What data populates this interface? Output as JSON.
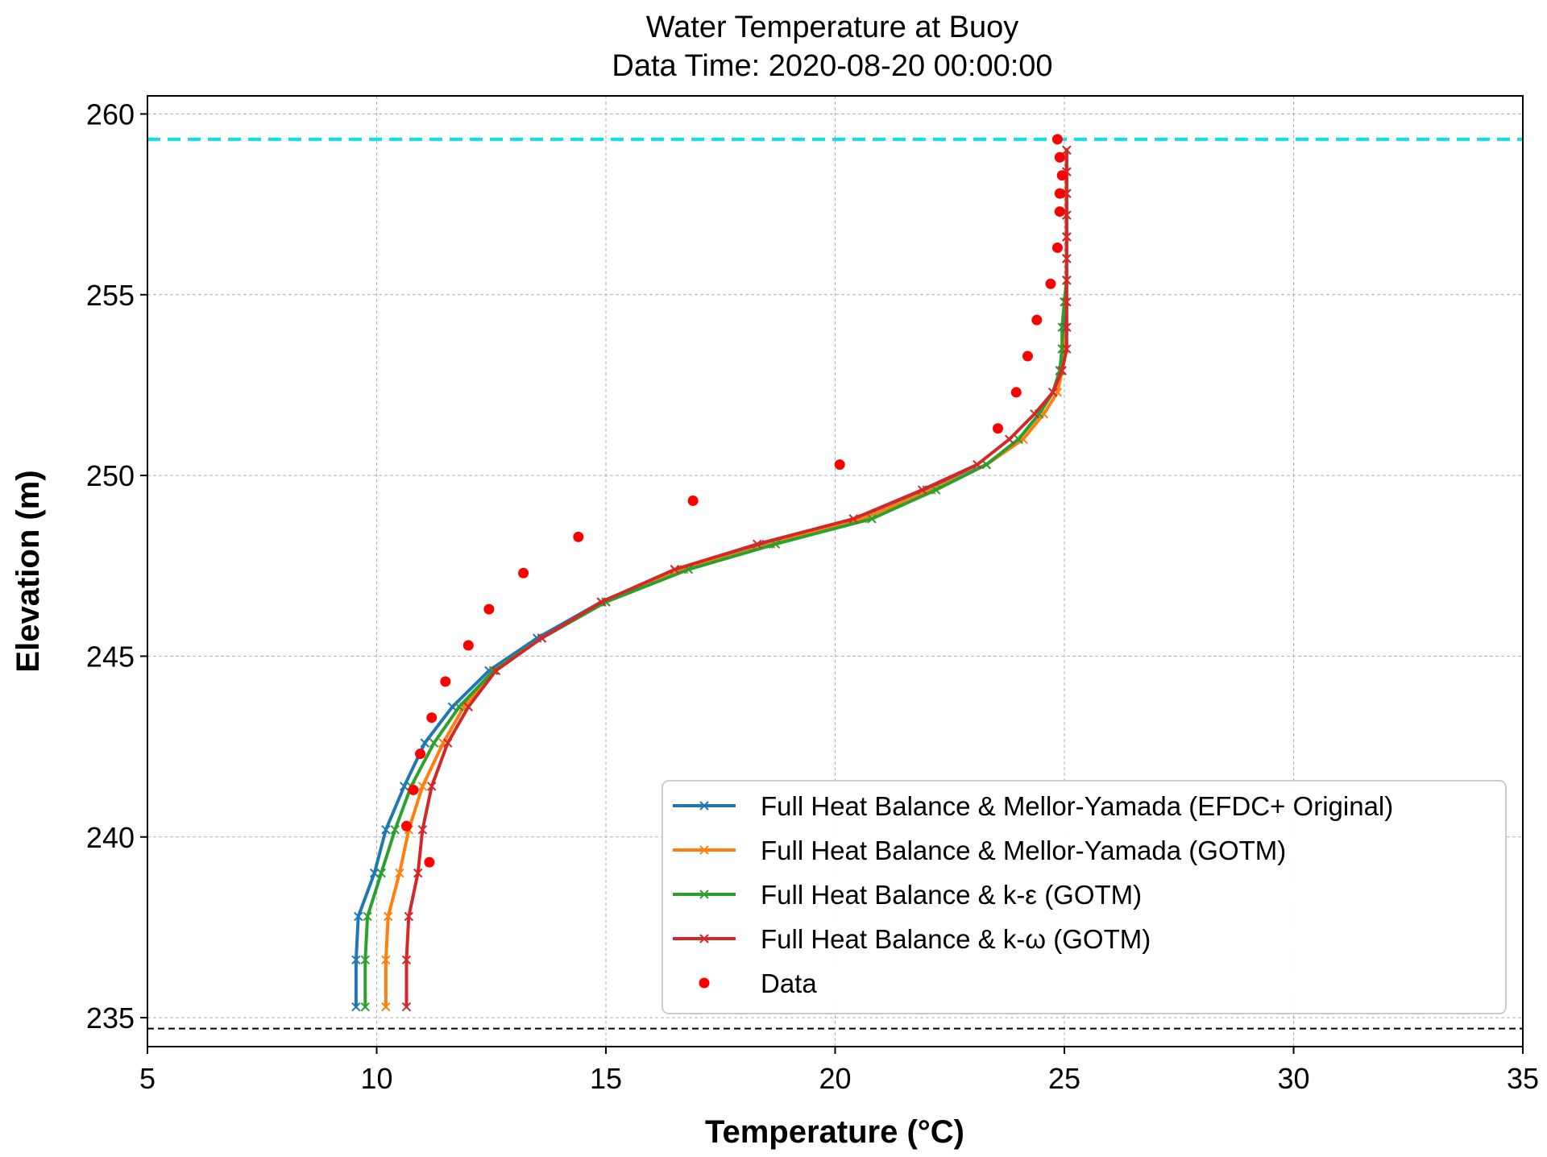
{
  "chart_data": {
    "type": "line",
    "title": "Water Temperature at Buoy",
    "subtitle": "Data Time: 2020-08-20 00:00:00",
    "xlabel": "Temperature (°C)",
    "ylabel": "Elevation (m)",
    "xlim": [
      5,
      35
    ],
    "ylim": [
      234.2,
      260.5
    ],
    "xticks": [
      5,
      10,
      15,
      20,
      25,
      30,
      35
    ],
    "yticks": [
      235,
      240,
      245,
      250,
      255,
      260
    ],
    "grid": true,
    "legend_position": "lower-right",
    "reference_lines": [
      {
        "y": 259.3,
        "color": "#00e5ee",
        "style": "dashed"
      },
      {
        "y": 234.7,
        "color": "#000000",
        "style": "dashed"
      }
    ],
    "series": [
      {
        "name": "Full Heat Balance & Mellor-Yamada (EFDC+ Original)",
        "color": "#1f77b4",
        "marker": "x",
        "points": [
          [
            9.55,
            235.3
          ],
          [
            9.55,
            236.6
          ],
          [
            9.6,
            237.8
          ],
          [
            9.95,
            239.0
          ],
          [
            10.2,
            240.2
          ],
          [
            10.6,
            241.4
          ],
          [
            11.05,
            242.6
          ],
          [
            11.65,
            243.6
          ],
          [
            12.45,
            244.6
          ],
          [
            13.5,
            245.5
          ],
          [
            14.9,
            246.5
          ],
          [
            16.5,
            247.4
          ],
          [
            18.5,
            248.1
          ],
          [
            20.4,
            248.8
          ],
          [
            22.0,
            249.6
          ],
          [
            23.3,
            250.3
          ],
          [
            24.0,
            251.0
          ],
          [
            24.45,
            251.7
          ],
          [
            24.75,
            252.3
          ],
          [
            24.9,
            252.9
          ],
          [
            24.95,
            253.5
          ],
          [
            25.0,
            254.1
          ],
          [
            25.0,
            254.8
          ],
          [
            25.05,
            255.4
          ],
          [
            25.05,
            256.0
          ],
          [
            25.05,
            256.6
          ],
          [
            25.05,
            257.2
          ],
          [
            25.05,
            257.8
          ],
          [
            25.05,
            258.4
          ],
          [
            25.05,
            259.0
          ]
        ]
      },
      {
        "name": "Full Heat Balance & Mellor-Yamada (GOTM)",
        "color": "#ff7f0e",
        "marker": "x",
        "points": [
          [
            10.2,
            235.3
          ],
          [
            10.2,
            236.6
          ],
          [
            10.25,
            237.8
          ],
          [
            10.5,
            239.0
          ],
          [
            10.7,
            240.2
          ],
          [
            11.0,
            241.4
          ],
          [
            11.45,
            242.6
          ],
          [
            11.9,
            243.6
          ],
          [
            12.55,
            244.6
          ],
          [
            13.6,
            245.5
          ],
          [
            15.0,
            246.5
          ],
          [
            16.7,
            247.4
          ],
          [
            18.6,
            248.1
          ],
          [
            20.6,
            248.8
          ],
          [
            22.1,
            249.6
          ],
          [
            23.3,
            250.3
          ],
          [
            24.1,
            251.0
          ],
          [
            24.55,
            251.7
          ],
          [
            24.85,
            252.3
          ],
          [
            24.95,
            252.9
          ],
          [
            25.0,
            253.5
          ],
          [
            25.05,
            254.1
          ],
          [
            25.05,
            254.8
          ],
          [
            25.05,
            255.4
          ],
          [
            25.05,
            256.0
          ],
          [
            25.05,
            256.6
          ],
          [
            25.05,
            257.2
          ],
          [
            25.05,
            257.8
          ],
          [
            25.05,
            258.4
          ],
          [
            25.05,
            259.0
          ]
        ]
      },
      {
        "name": "Full Heat Balance & k-ε (GOTM)",
        "color": "#2ca02c",
        "marker": "x",
        "points": [
          [
            9.75,
            235.3
          ],
          [
            9.75,
            236.6
          ],
          [
            9.8,
            237.8
          ],
          [
            10.1,
            239.0
          ],
          [
            10.4,
            240.2
          ],
          [
            10.75,
            241.4
          ],
          [
            11.25,
            242.6
          ],
          [
            11.8,
            243.6
          ],
          [
            12.55,
            244.6
          ],
          [
            13.6,
            245.5
          ],
          [
            15.0,
            246.5
          ],
          [
            16.8,
            247.4
          ],
          [
            18.7,
            248.1
          ],
          [
            20.8,
            248.8
          ],
          [
            22.2,
            249.6
          ],
          [
            23.3,
            250.3
          ],
          [
            24.0,
            251.0
          ],
          [
            24.45,
            251.7
          ],
          [
            24.75,
            252.3
          ],
          [
            24.9,
            252.9
          ],
          [
            24.95,
            253.5
          ],
          [
            24.95,
            254.1
          ],
          [
            25.0,
            254.8
          ],
          [
            25.05,
            255.4
          ],
          [
            25.05,
            256.0
          ],
          [
            25.05,
            256.6
          ],
          [
            25.05,
            257.2
          ],
          [
            25.05,
            257.8
          ],
          [
            25.05,
            258.4
          ],
          [
            25.05,
            259.0
          ]
        ]
      },
      {
        "name": "Full Heat Balance & k-ω (GOTM)",
        "color": "#d62728",
        "marker": "x",
        "points": [
          [
            10.65,
            235.3
          ],
          [
            10.65,
            236.6
          ],
          [
            10.7,
            237.8
          ],
          [
            10.9,
            239.0
          ],
          [
            11.0,
            240.2
          ],
          [
            11.2,
            241.4
          ],
          [
            11.55,
            242.6
          ],
          [
            12.0,
            243.6
          ],
          [
            12.6,
            244.6
          ],
          [
            13.6,
            245.5
          ],
          [
            14.9,
            246.5
          ],
          [
            16.5,
            247.4
          ],
          [
            18.3,
            248.1
          ],
          [
            20.4,
            248.8
          ],
          [
            21.9,
            249.6
          ],
          [
            23.1,
            250.3
          ],
          [
            23.8,
            251.0
          ],
          [
            24.35,
            251.7
          ],
          [
            24.75,
            252.3
          ],
          [
            24.95,
            252.9
          ],
          [
            25.05,
            253.5
          ],
          [
            25.05,
            254.1
          ],
          [
            25.05,
            254.8
          ],
          [
            25.05,
            255.4
          ],
          [
            25.05,
            256.0
          ],
          [
            25.05,
            256.6
          ],
          [
            25.05,
            257.2
          ],
          [
            25.05,
            257.8
          ],
          [
            25.05,
            258.4
          ],
          [
            25.05,
            259.0
          ]
        ]
      }
    ],
    "observations": {
      "name": "Data",
      "color": "#ff0000",
      "marker": "o",
      "points": [
        [
          24.85,
          259.3
        ],
        [
          24.9,
          258.8
        ],
        [
          24.95,
          258.3
        ],
        [
          24.9,
          257.8
        ],
        [
          24.9,
          257.3
        ],
        [
          24.85,
          256.3
        ],
        [
          24.7,
          255.3
        ],
        [
          24.4,
          254.3
        ],
        [
          24.2,
          253.3
        ],
        [
          23.95,
          252.3
        ],
        [
          23.55,
          251.3
        ],
        [
          20.1,
          250.3
        ],
        [
          16.9,
          249.3
        ],
        [
          14.4,
          248.3
        ],
        [
          13.2,
          247.3
        ],
        [
          12.45,
          246.3
        ],
        [
          12.0,
          245.3
        ],
        [
          11.5,
          244.3
        ],
        [
          11.2,
          243.3
        ],
        [
          10.95,
          242.3
        ],
        [
          10.8,
          241.3
        ],
        [
          10.65,
          240.3
        ],
        [
          11.15,
          239.3
        ]
      ]
    }
  }
}
